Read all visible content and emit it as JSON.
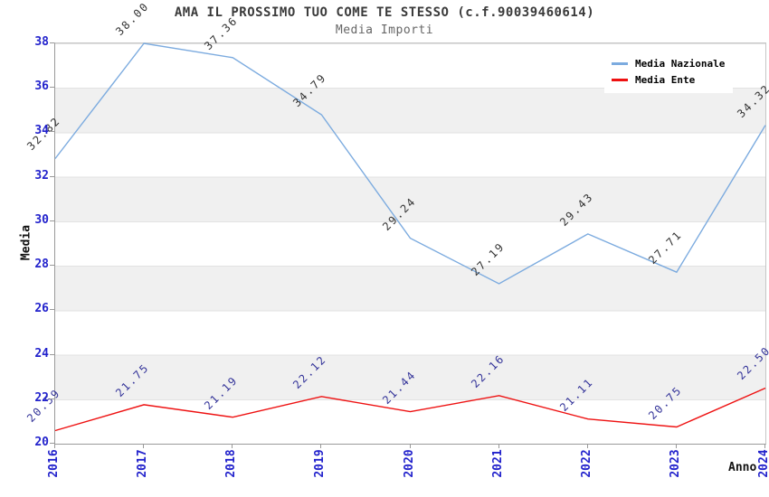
{
  "chart": {
    "title": "AMA IL PROSSIMO TUO COME TE STESSO (c.f.90039460614)",
    "subtitle": "Media Importi"
  },
  "chart_data": {
    "type": "line",
    "title": "AMA IL PROSSIMO TUO COME TE STESSO (c.f.90039460614)",
    "subtitle": "Media Importi",
    "xlabel": "Anno",
    "ylabel": "Media",
    "categories": [
      "2016",
      "2017",
      "2018",
      "2019",
      "2020",
      "2021",
      "2022",
      "2023",
      "2024"
    ],
    "series": [
      {
        "name": "Media Nazionale",
        "color": "#7cabdf",
        "label_color": "#333333",
        "values": [
          32.82,
          38.0,
          37.36,
          34.79,
          29.24,
          27.19,
          29.43,
          27.71,
          34.32
        ]
      },
      {
        "name": "Media Ente",
        "color": "#ee1111",
        "label_color": "#333399",
        "values": [
          20.59,
          21.75,
          21.19,
          22.12,
          21.44,
          22.16,
          21.11,
          20.75,
          22.5
        ]
      }
    ],
    "ylim": [
      20,
      38
    ],
    "ytick_step": 2,
    "ytick_labels": [
      "20",
      "22",
      "24",
      "26",
      "28",
      "30",
      "32",
      "34",
      "36",
      "38"
    ],
    "axis_tick_color": "#2222cc",
    "grid": "alternating-horizontal-bands",
    "band_color": "#f0f0f0",
    "legend_position": "top-right"
  }
}
